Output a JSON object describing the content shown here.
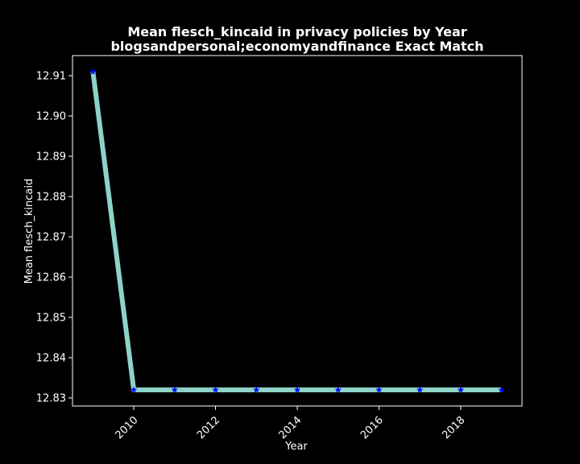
{
  "chart_data": {
    "type": "line",
    "title": "Mean flesch_kincaid in privacy policies by Year",
    "subtitle": "blogsandpersonal;economyandfinance Exact Match",
    "xlabel": "Year",
    "ylabel": "Mean flesch_kincaid",
    "x": [
      2009,
      2010,
      2011,
      2012,
      2013,
      2014,
      2015,
      2016,
      2017,
      2018,
      2019
    ],
    "series": [
      {
        "values": [
          12.911,
          12.832,
          12.832,
          12.832,
          12.832,
          12.832,
          12.832,
          12.832,
          12.832,
          12.832,
          12.832
        ],
        "line_color": "#8dd3c7",
        "marker": "star",
        "marker_color": "#0000ff"
      }
    ],
    "xlim": [
      2008.5,
      2019.5
    ],
    "ylim": [
      12.828,
      12.915
    ],
    "xticks": [
      2010,
      2012,
      2014,
      2016,
      2018
    ],
    "yticks": [
      12.83,
      12.84,
      12.85,
      12.86,
      12.87,
      12.88,
      12.89,
      12.9,
      12.91
    ],
    "ytick_labels": [
      "12.83",
      "12.84",
      "12.85",
      "12.86",
      "12.87",
      "12.88",
      "12.89",
      "12.90",
      "12.91"
    ],
    "grid": false,
    "background": "#000000",
    "foreground": "#ffffff"
  }
}
